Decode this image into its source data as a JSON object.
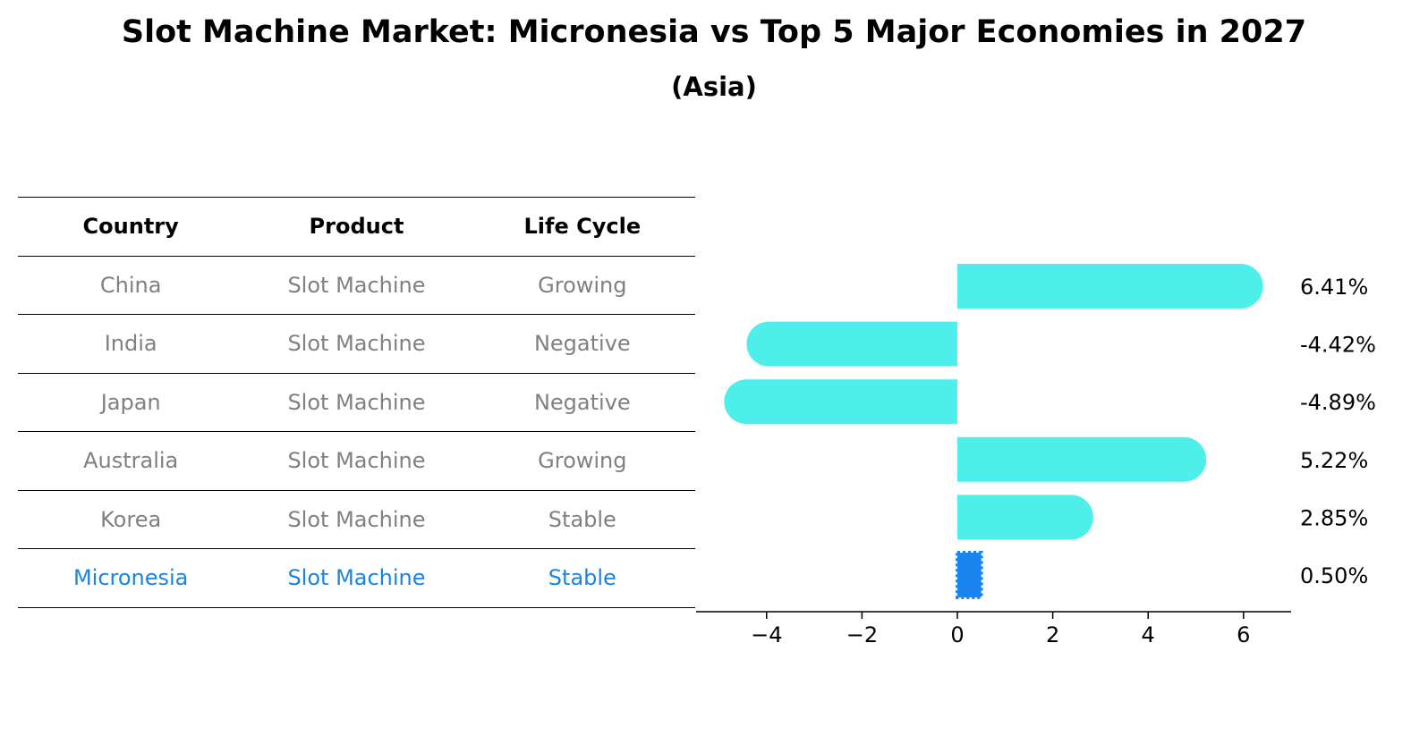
{
  "colors": {
    "bar": "#4eeeea",
    "highlight_bar": "#1a84f0",
    "highlight_text": "#1a84e0",
    "muted_text": "#808080"
  },
  "table": {
    "columns": [
      "Country",
      "Product",
      "Life Cycle"
    ],
    "rows": [
      {
        "country": "China",
        "product": "Slot Machine",
        "life_cycle": "Growing",
        "highlight": false
      },
      {
        "country": "India",
        "product": "Slot Machine",
        "life_cycle": "Negative",
        "highlight": false
      },
      {
        "country": "Japan",
        "product": "Slot Machine",
        "life_cycle": "Negative",
        "highlight": false
      },
      {
        "country": "Australia",
        "product": "Slot Machine",
        "life_cycle": "Growing",
        "highlight": false
      },
      {
        "country": "Korea",
        "product": "Slot Machine",
        "life_cycle": "Stable",
        "highlight": false
      },
      {
        "country": "Micronesia",
        "product": "Slot Machine",
        "life_cycle": "Stable",
        "highlight": true
      }
    ]
  },
  "chart_data": {
    "type": "bar",
    "orientation": "horizontal",
    "title": "Slot Machine Market: Micronesia vs Top 5 Major Economies in 2027",
    "subtitle": "(Asia)",
    "categories": [
      "China",
      "India",
      "Japan",
      "Australia",
      "Korea",
      "Micronesia"
    ],
    "values": [
      6.41,
      -4.42,
      -4.89,
      5.22,
      2.85,
      0.5
    ],
    "value_labels": [
      "6.41%",
      "-4.42%",
      "-4.89%",
      "5.22%",
      "2.85%",
      "0.50%"
    ],
    "highlight_index": 5,
    "xlabel": "",
    "ylabel": "",
    "xlim": [
      -5.5,
      7.0
    ],
    "xticks": [
      -4,
      -2,
      0,
      2,
      4,
      6
    ],
    "xtick_labels": [
      "−4",
      "−2",
      "0",
      "2",
      "4",
      "6"
    ],
    "grid": false
  }
}
